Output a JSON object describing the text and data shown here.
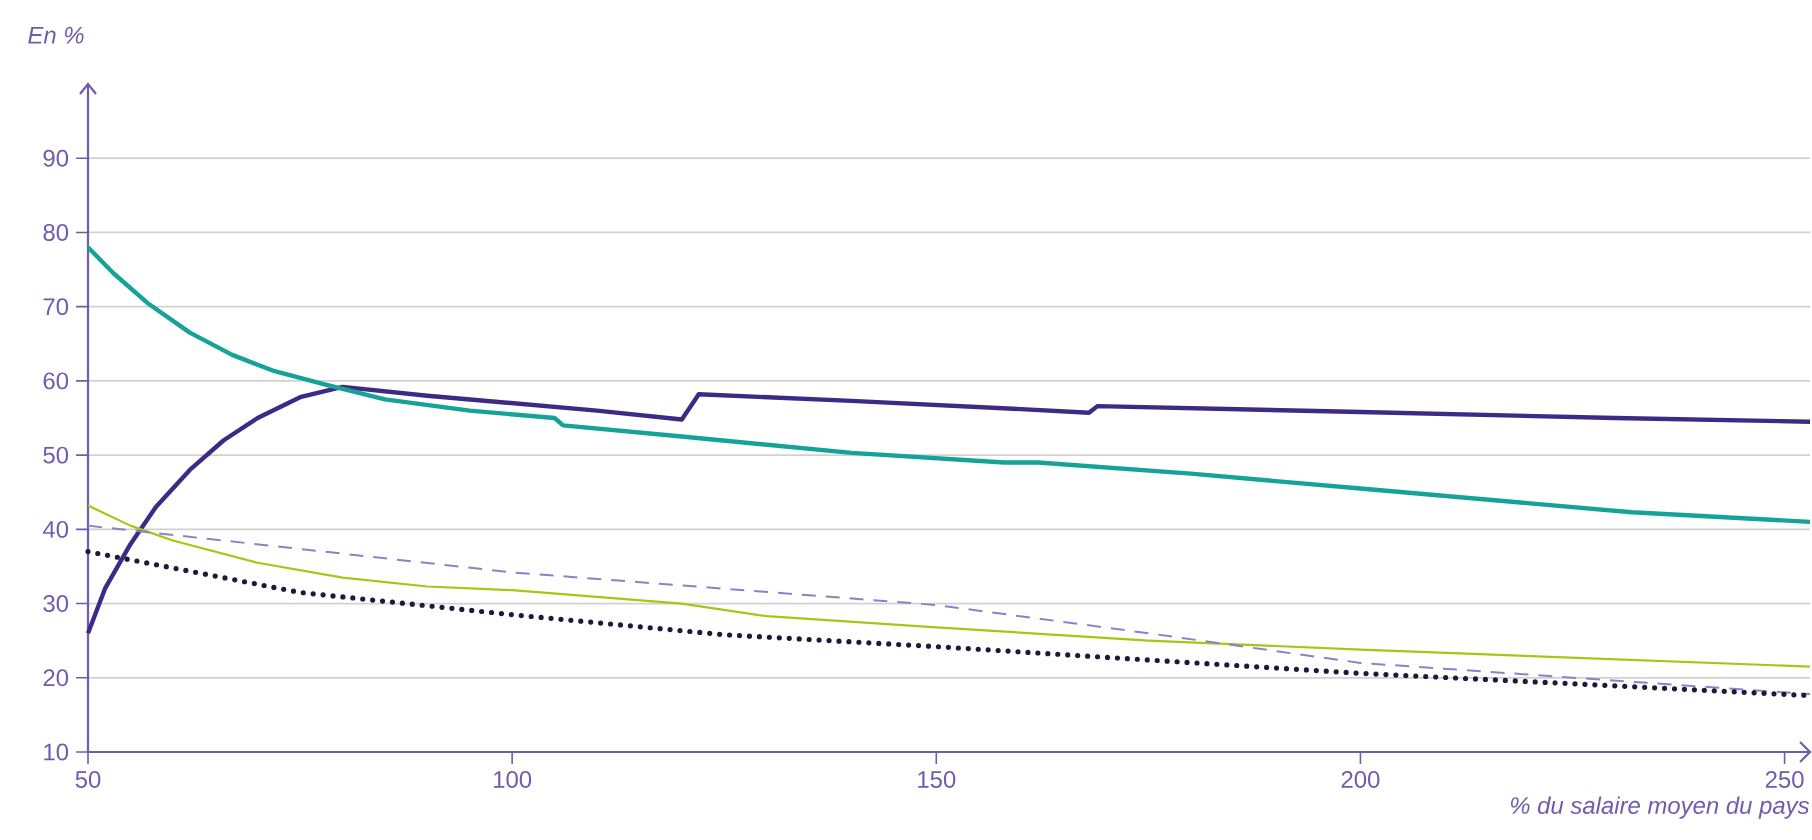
{
  "chart_data": {
    "type": "line",
    "ylabel": "En %",
    "xlabel": "% du salaire moyen du pays",
    "xlim": [
      50,
      253
    ],
    "ylim": [
      10,
      100
    ],
    "xticks": [
      50,
      100,
      150,
      200,
      250
    ],
    "yticks": [
      10,
      20,
      30,
      40,
      50,
      60,
      70,
      80,
      90
    ],
    "grid": "y",
    "marker": "none",
    "series": [
      {
        "color": "#3d2a84",
        "line_style": "solid",
        "x": [
          50,
          52,
          55,
          58,
          62,
          66,
          70,
          75,
          80,
          90,
          100,
          110,
          120,
          122,
          140,
          160,
          168,
          169,
          200,
          230,
          253
        ],
        "values": [
          26,
          32,
          38,
          43,
          48,
          52,
          55,
          57.8,
          59.2,
          58,
          57,
          56,
          54.8,
          58.2,
          57.3,
          56.2,
          55.7,
          56.6,
          55.8,
          55,
          54.5
        ]
      },
      {
        "color": "#16a397",
        "line_style": "solid",
        "x": [
          50,
          53,
          57,
          62,
          67,
          72,
          78,
          85,
          95,
          105,
          106,
          120,
          140,
          158,
          162,
          180,
          200,
          220,
          232,
          253
        ],
        "values": [
          78,
          74.5,
          70.5,
          66.5,
          63.5,
          61.3,
          59.5,
          57.5,
          56,
          55,
          54,
          52.5,
          50.3,
          49,
          49,
          47.5,
          45.5,
          43.5,
          42.3,
          41
        ]
      },
      {
        "color": "#a5c613",
        "line_style": "solid",
        "x": [
          50,
          55,
          60,
          70,
          80,
          90,
          100,
          120,
          130,
          150,
          175,
          200,
          253
        ],
        "values": [
          43.2,
          40.5,
          38.5,
          35.5,
          33.5,
          32.3,
          31.8,
          30,
          28.3,
          26.8,
          25,
          23.8,
          21.5
        ]
      },
      {
        "color": "#8c80c6",
        "line_style": "dashed",
        "x": [
          50,
          100,
          150,
          175,
          200,
          253
        ],
        "values": [
          40.5,
          34.2,
          29.8,
          26,
          22,
          17.8
        ]
      },
      {
        "color": "#1a1a3a",
        "line_style": "dotted",
        "x": [
          50,
          75,
          100,
          125,
          150,
          175,
          200,
          225,
          253
        ],
        "values": [
          37,
          31.5,
          28.5,
          25.8,
          24.2,
          22.4,
          20.6,
          19.2,
          17.6
        ]
      }
    ]
  }
}
